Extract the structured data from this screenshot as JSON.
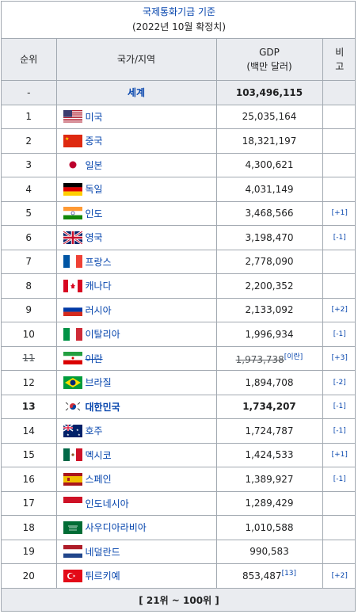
{
  "caption": {
    "line1": "국제통화기금 기준",
    "line2": "(2022년 10월 확정치)"
  },
  "header": {
    "rank": "순위",
    "country": "국가/지역",
    "gdp_line1": "GDP",
    "gdp_line2": "(백만 달러)",
    "note_line1": "비",
    "note_line2": "고"
  },
  "world": {
    "rank": "-",
    "name": "세계",
    "gdp": "103,496,115"
  },
  "rows": [
    {
      "rank": "1",
      "name": "미국",
      "gdp": "25,035,164",
      "note": "",
      "flag": "us-flag-icon"
    },
    {
      "rank": "2",
      "name": "중국",
      "gdp": "18,321,197",
      "note": "",
      "flag": "cn-flag-icon"
    },
    {
      "rank": "3",
      "name": "일본",
      "gdp": "4,300,621",
      "note": "",
      "flag": "jp-flag-icon"
    },
    {
      "rank": "4",
      "name": "독일",
      "gdp": "4,031,149",
      "note": "",
      "flag": "de-flag-icon"
    },
    {
      "rank": "5",
      "name": "인도",
      "gdp": "3,468,566",
      "note": "[+1]",
      "flag": "in-flag-icon"
    },
    {
      "rank": "6",
      "name": "영국",
      "gdp": "3,198,470",
      "note": "[-1]",
      "flag": "gb-flag-icon"
    },
    {
      "rank": "7",
      "name": "프랑스",
      "gdp": "2,778,090",
      "note": "",
      "flag": "fr-flag-icon"
    },
    {
      "rank": "8",
      "name": "캐나다",
      "gdp": "2,200,352",
      "note": "",
      "flag": "ca-flag-icon"
    },
    {
      "rank": "9",
      "name": "러시아",
      "gdp": "2,133,092",
      "note": "[+2]",
      "flag": "ru-flag-icon"
    },
    {
      "rank": "10",
      "name": "이탈리아",
      "gdp": "1,996,934",
      "note": "[-1]",
      "flag": "it-flag-icon"
    },
    {
      "rank": "11",
      "name": "이란",
      "gdp": "1,973,738",
      "gdp_ref": "[이란]",
      "note": "[+3]",
      "flag": "ir-flag-icon",
      "struck": true
    },
    {
      "rank": "12",
      "name": "브라질",
      "gdp": "1,894,708",
      "note": "[-2]",
      "flag": "br-flag-icon"
    },
    {
      "rank": "13",
      "name": "대한민국",
      "gdp": "1,734,207",
      "note": "[-1]",
      "flag": "kr-flag-icon",
      "bold": true
    },
    {
      "rank": "14",
      "name": "호주",
      "gdp": "1,724,787",
      "note": "[-1]",
      "flag": "au-flag-icon"
    },
    {
      "rank": "15",
      "name": "멕시코",
      "gdp": "1,424,533",
      "note": "[+1]",
      "flag": "mx-flag-icon"
    },
    {
      "rank": "16",
      "name": "스페인",
      "gdp": "1,389,927",
      "note": "[-1]",
      "flag": "es-flag-icon"
    },
    {
      "rank": "17",
      "name": "인도네시아",
      "gdp": "1,289,429",
      "note": "",
      "flag": "id-flag-icon"
    },
    {
      "rank": "18",
      "name": "사우디아라비아",
      "gdp": "1,010,588",
      "note": "",
      "flag": "sa-flag-icon"
    },
    {
      "rank": "19",
      "name": "네덜란드",
      "gdp": "990,583",
      "note": "",
      "flag": "nl-flag-icon"
    },
    {
      "rank": "20",
      "name": "튀르키예",
      "gdp": "853,487",
      "gdp_ref": "[13]",
      "note": "[+2]",
      "flag": "tr-flag-icon"
    }
  ],
  "footer": {
    "label": "[ 21위 ~ 100위 ]"
  }
}
